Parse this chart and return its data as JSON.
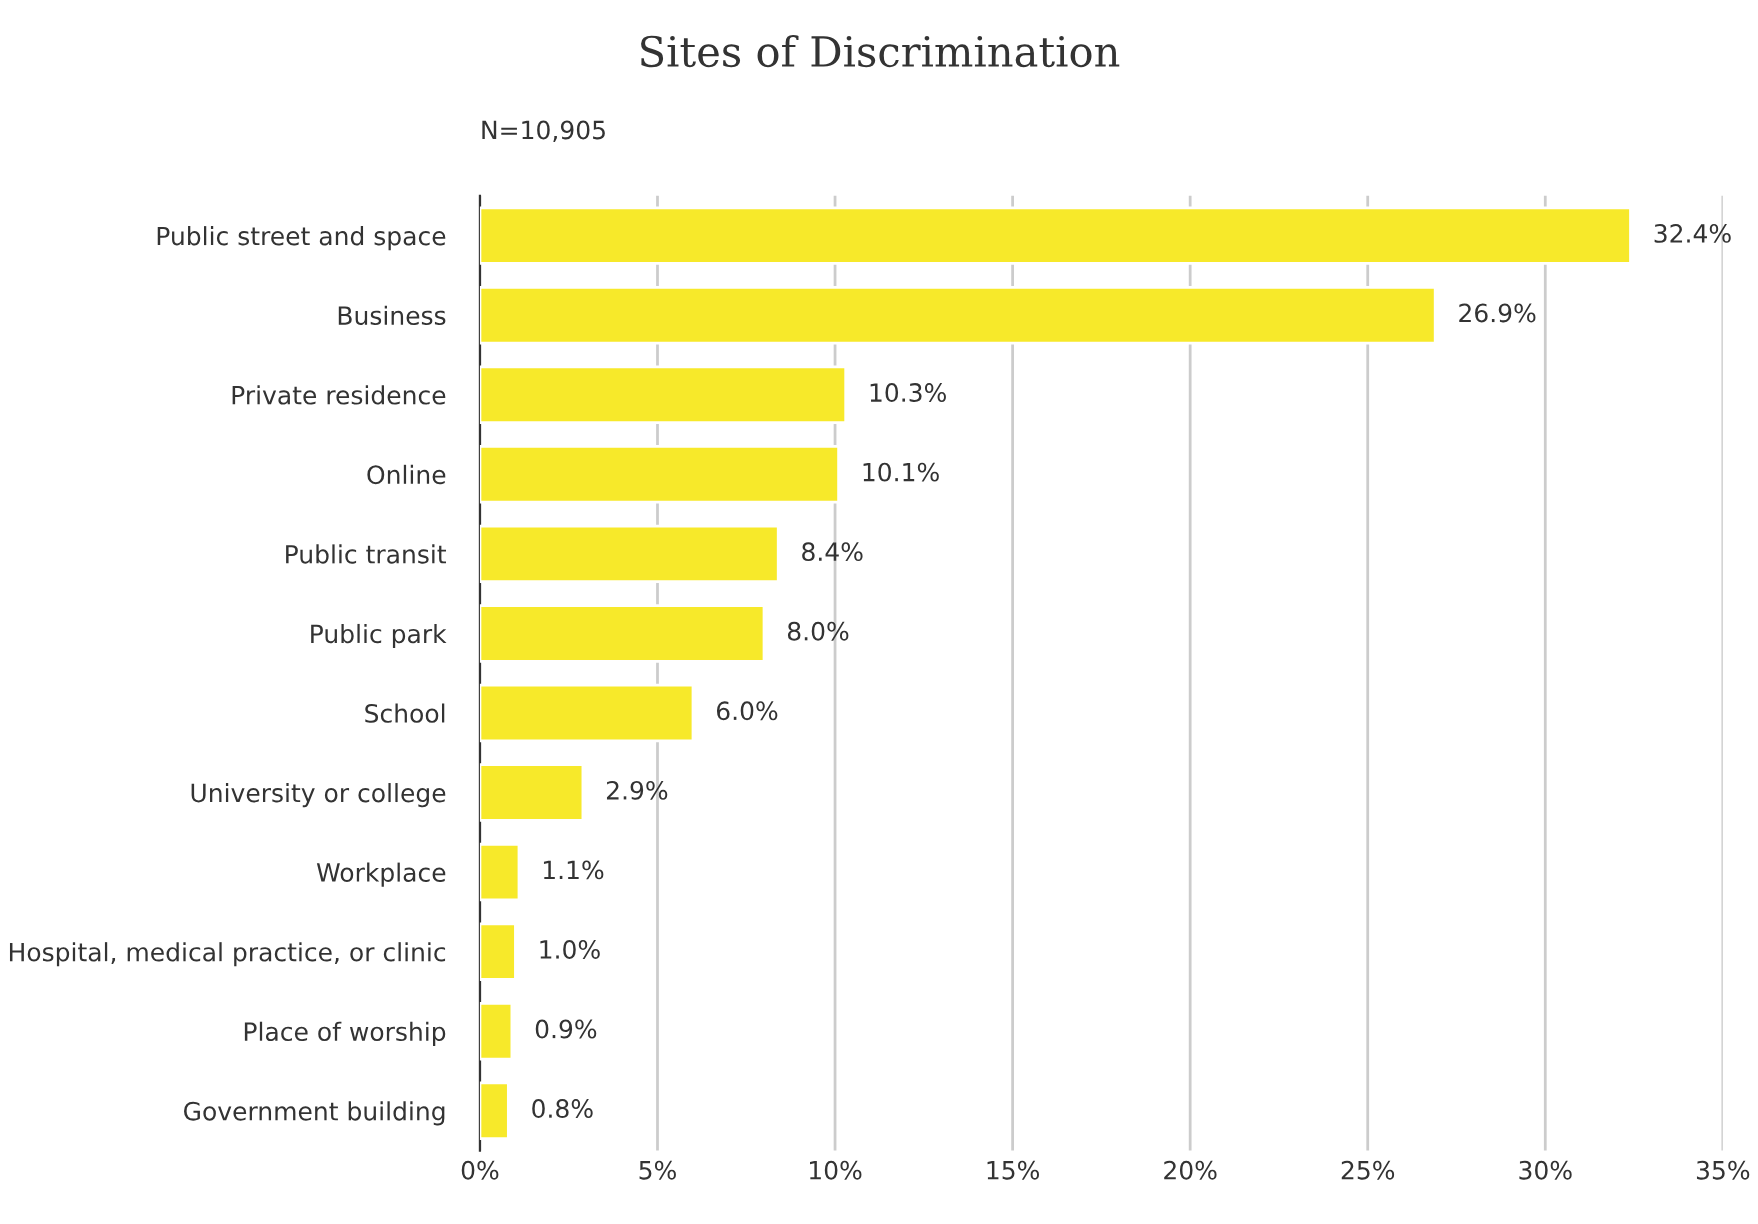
{
  "chart_data": {
    "type": "bar",
    "orientation": "horizontal",
    "title": "Sites of Discrimination",
    "annotations": [
      "N=10,905"
    ],
    "categories": [
      "Public street and space",
      "Business",
      "Private residence",
      "Online",
      "Public transit",
      "Public park",
      "School",
      "University or college",
      "Workplace",
      "Hospital, medical practice, or clinic",
      "Place of worship",
      "Government building"
    ],
    "values": [
      32.4,
      26.9,
      10.3,
      10.1,
      8.4,
      8.0,
      6.0,
      2.9,
      1.1,
      1.0,
      0.9,
      0.8
    ],
    "value_labels": [
      "32.4%",
      "26.9%",
      "10.3%",
      "10.1%",
      "8.4%",
      "8.0%",
      "6.0%",
      "2.9%",
      "1.1%",
      "1.0%",
      "0.9%",
      "0.8%"
    ],
    "color": "#f7e92a",
    "xlim": [
      0,
      35
    ],
    "xticks": [
      {
        "value": 0,
        "label": "0%"
      },
      {
        "value": 5,
        "label": "5%"
      },
      {
        "value": 10,
        "label": "10%"
      },
      {
        "value": 15,
        "label": "15%"
      },
      {
        "value": 20,
        "label": "20%"
      },
      {
        "value": 25,
        "label": "25%"
      },
      {
        "value": 30,
        "label": "30%"
      },
      {
        "value": 35,
        "label": "35%"
      }
    ],
    "grid": "x",
    "legend": false
  }
}
